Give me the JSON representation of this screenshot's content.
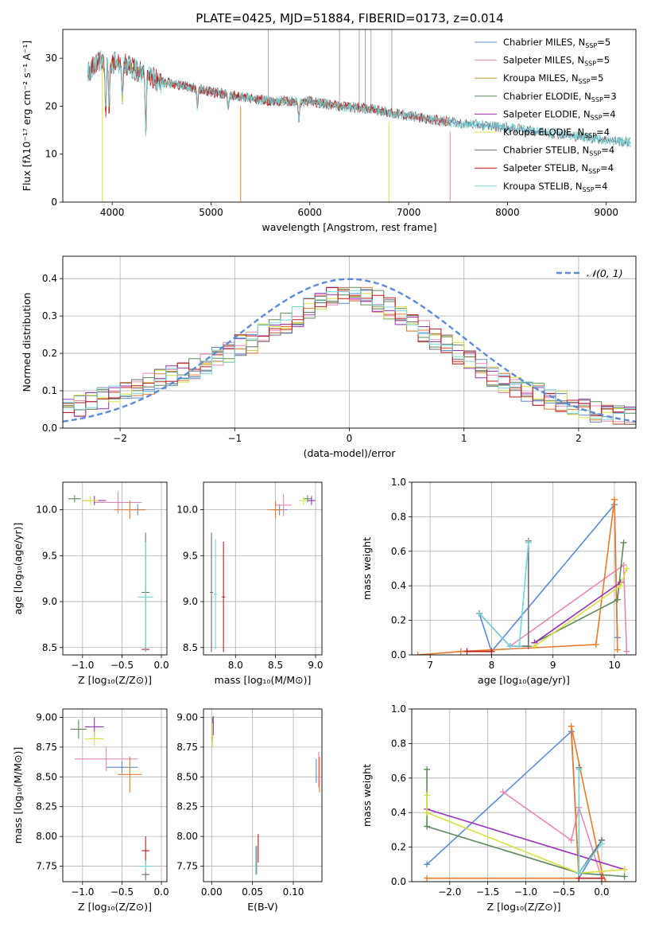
{
  "figure": {
    "title": "PLATE=0425, MJD=51884, FIBERID=0173, z=0.014"
  },
  "colors": {
    "Chabrier MILES": "#5b8bd6",
    "Salpeter MILES": "#e887b5",
    "Kroupa MILES": "#d2902a",
    "Chabrier ELODIE": "#5a8a5a",
    "Salpeter ELODIE": "#9a2fb8",
    "Kroupa ELODIE": "#d8e040",
    "Chabrier STELIB": "#6e6e6e",
    "Salpeter STELIB": "#c0191f",
    "Kroupa STELIB": "#74d6d8",
    "orange_model": "#e87a2a",
    "gauss": "#5b8bd6",
    "grid": "#b0b0b0"
  },
  "chart_data": [
    {
      "id": "spectrum",
      "type": "line",
      "xlabel": "wavelength [Angstrom, rest frame]",
      "ylabel": "Flux [fλ10⁻¹⁷ erg cm⁻² s⁻¹ A⁻¹]",
      "xlim": [
        3500,
        9300
      ],
      "ylim": [
        0,
        36
      ],
      "xticks": [
        4000,
        5000,
        6000,
        7000,
        8000,
        9000
      ],
      "yticks": [
        0,
        10,
        20,
        30
      ],
      "grid": false,
      "legend_position": "top-right",
      "legend": [
        {
          "label": "Chabrier MILES, N",
          "sub": "SSP",
          "n": "=5"
        },
        {
          "label": "Salpeter MILES, N",
          "sub": "SSP",
          "n": "=5"
        },
        {
          "label": "Kroupa MILES, N",
          "sub": "SSP",
          "n": "=5"
        },
        {
          "label": "Chabrier ELODIE, N",
          "sub": "SSP",
          "n": "=3"
        },
        {
          "label": "Salpeter ELODIE, N",
          "sub": "SSP",
          "n": "=4"
        },
        {
          "label": "Kroupa ELODIE, N",
          "sub": "SSP",
          "n": "=4"
        },
        {
          "label": "Chabrier STELIB, N",
          "sub": "SSP",
          "n": "=4"
        },
        {
          "label": "Salpeter STELIB, N",
          "sub": "SSP",
          "n": "=4"
        },
        {
          "label": "Kroupa STELIB, N",
          "sub": "SSP",
          "n": "=4"
        }
      ],
      "continuum": {
        "x": [
          3750,
          3900,
          4000,
          4100,
          4300,
          4500,
          4800,
          5000,
          5300,
          5600,
          6000,
          6300,
          6600,
          7000,
          7300,
          7500,
          8000,
          8400,
          8800,
          9200
        ],
        "y": [
          27,
          30,
          29,
          29,
          27,
          25,
          24,
          23,
          22,
          21,
          21,
          20,
          19.5,
          18,
          17,
          16.5,
          15.5,
          14.5,
          13.5,
          12.5
        ]
      },
      "absorption_lines": [
        {
          "x": 3934,
          "depth": 12
        },
        {
          "x": 3969,
          "depth": 10
        },
        {
          "x": 4102,
          "depth": 8
        },
        {
          "x": 4340,
          "depth": 12
        },
        {
          "x": 4861,
          "depth": 4
        },
        {
          "x": 5175,
          "depth": 3
        },
        {
          "x": 5890,
          "depth": 4
        }
      ],
      "series_extents": [
        {
          "name": "Chabrier MILES",
          "x": [
            3750,
            9250
          ]
        },
        {
          "name": "Salpeter MILES",
          "x": [
            3750,
            7400
          ]
        },
        {
          "name": "Kroupa MILES",
          "x": [
            3750,
            7400
          ]
        },
        {
          "name": "Chabrier ELODIE",
          "x": [
            4100,
            6800
          ]
        },
        {
          "name": "Salpeter ELODIE",
          "x": [
            4100,
            6800
          ]
        },
        {
          "name": "Kroupa ELODIE",
          "x": [
            3900,
            6800
          ]
        },
        {
          "name": "Chabrier STELIB",
          "x": [
            3750,
            9250
          ]
        },
        {
          "name": "Salpeter STELIB",
          "x": [
            3750,
            7400
          ]
        },
        {
          "name": "Kroupa STELIB",
          "x": [
            3750,
            9250
          ]
        }
      ]
    },
    {
      "id": "residuals",
      "type": "line",
      "xlabel": "(data-model)/error",
      "ylabel": "Normed distribution",
      "xlim": [
        -2.5,
        2.5
      ],
      "ylim": [
        0,
        0.46
      ],
      "xticks": [
        -2,
        -1,
        0,
        1,
        2
      ],
      "yticks": [
        0.0,
        0.1,
        0.2,
        0.3,
        0.4
      ],
      "grid": true,
      "legend_position": "top-right",
      "gauss_label": "𝒩(0, 1)",
      "bins": {
        "min": -2.5,
        "width": 0.1,
        "count": 50
      },
      "profile": [
        0.06,
        0.06,
        0.07,
        0.08,
        0.09,
        0.1,
        0.11,
        0.12,
        0.13,
        0.14,
        0.15,
        0.16,
        0.17,
        0.19,
        0.2,
        0.22,
        0.23,
        0.25,
        0.27,
        0.28,
        0.3,
        0.32,
        0.34,
        0.35,
        0.36,
        0.36,
        0.35,
        0.34,
        0.32,
        0.3,
        0.28,
        0.26,
        0.24,
        0.22,
        0.2,
        0.18,
        0.16,
        0.14,
        0.12,
        0.11,
        0.1,
        0.09,
        0.08,
        0.07,
        0.06,
        0.05,
        0.045,
        0.04,
        0.035,
        0.03
      ]
    },
    {
      "id": "age-vs-Z",
      "type": "scatter",
      "xlabel": "Z [log₁₀(Z/Z⊙)]",
      "ylabel": "age  [log₁₀(age/yr)]",
      "xlim": [
        -1.25,
        0.07
      ],
      "ylim": [
        8.42,
        10.3
      ],
      "xticks": [
        -1.0,
        -0.5,
        0.0
      ],
      "yticks": [
        8.5,
        9.0,
        9.5,
        10.0
      ],
      "grid": true,
      "points": [
        {
          "series": "Chabrier MILES",
          "x": -0.3,
          "y": 10.0,
          "xerr": 0.1,
          "yerr": 0.06
        },
        {
          "series": "Salpeter MILES",
          "x": -0.55,
          "y": 10.08,
          "xerr": 0.3,
          "yerr": 0.12
        },
        {
          "series": "Kroupa MILES",
          "x": -0.4,
          "y": 10.0,
          "xerr": 0.2,
          "yerr": 0.1
        },
        {
          "series": "Chabrier ELODIE",
          "x": -1.1,
          "y": 10.12,
          "xerr": 0.08,
          "yerr": 0.04
        },
        {
          "series": "Salpeter ELODIE",
          "x": -0.85,
          "y": 10.1,
          "xerr": 0.15,
          "yerr": 0.05
        },
        {
          "series": "Kroupa ELODIE",
          "x": -0.9,
          "y": 10.1,
          "xerr": 0.1,
          "yerr": 0.05
        },
        {
          "series": "Chabrier STELIB",
          "x": -0.2,
          "y": 9.1,
          "xerr": 0.05,
          "yerr": 0.65
        },
        {
          "series": "Salpeter STELIB",
          "x": -0.2,
          "y": 8.48,
          "xerr": 0.05,
          "yerr": 0.02
        },
        {
          "series": "Kroupa STELIB",
          "x": -0.2,
          "y": 9.05,
          "xerr": 0.1,
          "yerr": 0.6
        }
      ]
    },
    {
      "id": "age-vs-mass",
      "type": "scatter",
      "xlabel": "mass [log₁₀(M/M⊙)]",
      "ylabel": "",
      "xlim": [
        7.6,
        9.08
      ],
      "ylim": [
        8.42,
        10.3
      ],
      "xticks": [
        8.0,
        8.5,
        9.0
      ],
      "yticks": [
        8.5,
        9.0,
        9.5,
        10.0
      ],
      "grid": true,
      "points": [
        {
          "series": "Chabrier MILES",
          "x": 8.55,
          "y": 10.0,
          "xerr": 0.1,
          "yerr": 0.06
        },
        {
          "series": "Salpeter MILES",
          "x": 8.6,
          "y": 10.05,
          "xerr": 0.1,
          "yerr": 0.12
        },
        {
          "series": "Kroupa MILES",
          "x": 8.5,
          "y": 10.0,
          "xerr": 0.1,
          "yerr": 0.1
        },
        {
          "series": "Chabrier ELODIE",
          "x": 8.9,
          "y": 10.12,
          "xerr": 0.05,
          "yerr": 0.04
        },
        {
          "series": "Salpeter ELODIE",
          "x": 8.95,
          "y": 10.1,
          "xerr": 0.05,
          "yerr": 0.05
        },
        {
          "series": "Kroupa ELODIE",
          "x": 8.85,
          "y": 10.1,
          "xerr": 0.05,
          "yerr": 0.05
        },
        {
          "series": "Chabrier STELIB",
          "x": 7.7,
          "y": 9.1,
          "xerr": 0.02,
          "yerr": 0.65
        },
        {
          "series": "Salpeter STELIB",
          "x": 7.85,
          "y": 9.05,
          "xerr": 0.02,
          "yerr": 0.6
        },
        {
          "series": "Kroupa STELIB",
          "x": 7.75,
          "y": 9.08,
          "xerr": 0.02,
          "yerr": 0.6
        }
      ]
    },
    {
      "id": "weight-vs-age",
      "type": "line",
      "xlabel": "age  [log₁₀(age/yr)]",
      "ylabel": "mass weight",
      "xlim": [
        6.7,
        10.35
      ],
      "ylim": [
        0,
        1.0
      ],
      "xticks": [
        7,
        8,
        9,
        10
      ],
      "yticks": [
        0.0,
        0.2,
        0.4,
        0.6,
        0.8,
        1.0
      ],
      "grid": true,
      "series": [
        {
          "name": "Chabrier MILES",
          "x": [
            7.8,
            8.0,
            10.0,
            10.05
          ],
          "y": [
            0.24,
            0.02,
            0.87,
            0.1
          ]
        },
        {
          "name": "Salpeter MILES",
          "x": [
            7.8,
            8.3,
            10.15,
            10.2
          ],
          "y": [
            0.24,
            0.05,
            0.52,
            0.02
          ]
        },
        {
          "name": "Kroupa MILES",
          "x": [
            6.8,
            7.5,
            9.7,
            10.0,
            10.05
          ],
          "y": [
            0.0,
            0.02,
            0.06,
            0.9,
            0.03
          ]
        },
        {
          "name": "Chabrier ELODIE",
          "x": [
            8.7,
            10.05,
            10.15
          ],
          "y": [
            0.07,
            0.32,
            0.65
          ]
        },
        {
          "name": "Salpeter ELODIE",
          "x": [
            8.7,
            10.1
          ],
          "y": [
            0.07,
            0.42
          ]
        },
        {
          "name": "Kroupa ELODIE",
          "x": [
            8.7,
            10.1,
            10.2
          ],
          "y": [
            0.05,
            0.4,
            0.5
          ]
        },
        {
          "name": "Chabrier STELIB",
          "x": [
            7.8,
            8.3,
            8.6,
            8.6
          ],
          "y": [
            0.24,
            0.05,
            0.05,
            0.66
          ]
        },
        {
          "name": "Salpeter STELIB",
          "x": [
            7.6,
            8.0
          ],
          "y": [
            0.02,
            0.02
          ]
        },
        {
          "name": "Kroupa STELIB",
          "x": [
            7.8,
            8.3,
            8.45,
            8.6
          ],
          "y": [
            0.24,
            0.05,
            0.05,
            0.65
          ]
        }
      ]
    },
    {
      "id": "mass-vs-Z",
      "type": "scatter",
      "xlabel": "Z [log₁₀(Z/Z⊙)]",
      "ylabel": "mass [log₁₀(M/M⊙)]",
      "xlim": [
        -1.25,
        0.07
      ],
      "ylim": [
        7.62,
        9.07
      ],
      "xticks": [
        -1.0,
        -0.5,
        0.0
      ],
      "yticks": [
        7.75,
        8.0,
        8.25,
        8.5,
        8.75,
        9.0
      ],
      "grid": true,
      "points": [
        {
          "series": "Chabrier MILES",
          "x": -0.5,
          "y": 8.58,
          "xerr": 0.2,
          "yerr": 0.05
        },
        {
          "series": "Salpeter MILES",
          "x": -0.7,
          "y": 8.65,
          "xerr": 0.4,
          "yerr": 0.1
        },
        {
          "series": "Kroupa MILES",
          "x": -0.4,
          "y": 8.52,
          "xerr": 0.15,
          "yerr": 0.15
        },
        {
          "series": "Chabrier ELODIE",
          "x": -1.05,
          "y": 8.9,
          "xerr": 0.1,
          "yerr": 0.08
        },
        {
          "series": "Salpeter ELODIE",
          "x": -0.85,
          "y": 8.92,
          "xerr": 0.12,
          "yerr": 0.08
        },
        {
          "series": "Kroupa ELODIE",
          "x": -0.85,
          "y": 8.82,
          "xerr": 0.12,
          "yerr": 0.06
        },
        {
          "series": "Chabrier STELIB",
          "x": -0.2,
          "y": 7.68,
          "xerr": 0.05,
          "yerr": 0.05
        },
        {
          "series": "Salpeter STELIB",
          "x": -0.2,
          "y": 7.88,
          "xerr": 0.05,
          "yerr": 0.12
        },
        {
          "series": "Kroupa STELIB",
          "x": -0.2,
          "y": 7.75,
          "xerr": 0.1,
          "yerr": 0.05
        }
      ]
    },
    {
      "id": "mass-vs-ebv",
      "type": "scatter",
      "xlabel": "E(B-V)",
      "ylabel": "",
      "xlim": [
        -0.01,
        0.135
      ],
      "ylim": [
        7.62,
        9.07
      ],
      "xticks": [
        0.0,
        0.05,
        0.1
      ],
      "yticks": [
        7.75,
        8.0,
        8.25,
        8.5,
        8.75,
        9.0
      ],
      "grid": true,
      "points": [
        {
          "series": "Chabrier MILES",
          "x": 0.128,
          "y": 8.55,
          "xerr": 0.0,
          "yerr": 0.1
        },
        {
          "series": "Salpeter MILES",
          "x": 0.131,
          "y": 8.56,
          "xerr": 0.0,
          "yerr": 0.15
        },
        {
          "series": "Kroupa MILES",
          "x": 0.132,
          "y": 8.52,
          "xerr": 0.0,
          "yerr": 0.15
        },
        {
          "series": "Chabrier ELODIE",
          "x": 0.001,
          "y": 8.9,
          "xerr": 0.0,
          "yerr": 0.1
        },
        {
          "series": "Salpeter ELODIE",
          "x": 0.002,
          "y": 8.93,
          "xerr": 0.0,
          "yerr": 0.08
        },
        {
          "series": "Kroupa ELODIE",
          "x": 0.001,
          "y": 8.85,
          "xerr": 0.0,
          "yerr": 0.1
        },
        {
          "series": "Chabrier STELIB",
          "x": 0.055,
          "y": 7.8,
          "xerr": 0.0,
          "yerr": 0.12
        },
        {
          "series": "Salpeter STELIB",
          "x": 0.057,
          "y": 7.9,
          "xerr": 0.0,
          "yerr": 0.12
        },
        {
          "series": "Kroupa STELIB",
          "x": 0.054,
          "y": 7.8,
          "xerr": 0.0,
          "yerr": 0.12
        }
      ]
    },
    {
      "id": "weight-vs-Z",
      "type": "line",
      "xlabel": "Z [log₁₀(Z/Z⊙)]",
      "ylabel": "mass weight",
      "xlim": [
        -2.5,
        0.45
      ],
      "ylim": [
        0,
        1.0
      ],
      "xticks": [
        -2.0,
        -1.5,
        -1.0,
        -0.5,
        0.0
      ],
      "yticks": [
        0.0,
        0.2,
        0.4,
        0.6,
        0.8,
        1.0
      ],
      "grid": true,
      "series": [
        {
          "name": "Chabrier MILES",
          "x": [
            -2.3,
            -0.4,
            -0.3,
            0.0
          ],
          "y": [
            0.1,
            0.87,
            0.02,
            0.24
          ]
        },
        {
          "name": "Salpeter MILES",
          "x": [
            -1.3,
            -0.4,
            -0.3,
            0.0
          ],
          "y": [
            0.52,
            0.24,
            0.43,
            0.02
          ]
        },
        {
          "name": "Kroupa MILES",
          "x": [
            -2.3,
            -0.3,
            -0.4,
            0.0,
            0.05
          ],
          "y": [
            0.02,
            0.02,
            0.9,
            0.06,
            0.0
          ]
        },
        {
          "name": "Chabrier ELODIE",
          "x": [
            -2.3,
            -2.3,
            -0.3,
            0.3
          ],
          "y": [
            0.65,
            0.32,
            0.05,
            0.03
          ]
        },
        {
          "name": "Salpeter ELODIE",
          "x": [
            -2.3,
            0.3
          ],
          "y": [
            0.42,
            0.07
          ]
        },
        {
          "name": "Kroupa ELODIE",
          "x": [
            -2.3,
            -2.3,
            -0.3,
            0.3
          ],
          "y": [
            0.5,
            0.4,
            0.05,
            0.07
          ]
        },
        {
          "name": "Chabrier STELIB",
          "x": [
            -0.3,
            -0.3,
            0.0
          ],
          "y": [
            0.66,
            0.05,
            0.24
          ]
        },
        {
          "name": "Salpeter STELIB",
          "x": [
            -0.3,
            0.0
          ],
          "y": [
            0.02,
            0.02
          ]
        },
        {
          "name": "Kroupa STELIB",
          "x": [
            -0.3,
            -0.3,
            0.0
          ],
          "y": [
            0.65,
            0.05,
            0.22
          ]
        }
      ]
    }
  ]
}
